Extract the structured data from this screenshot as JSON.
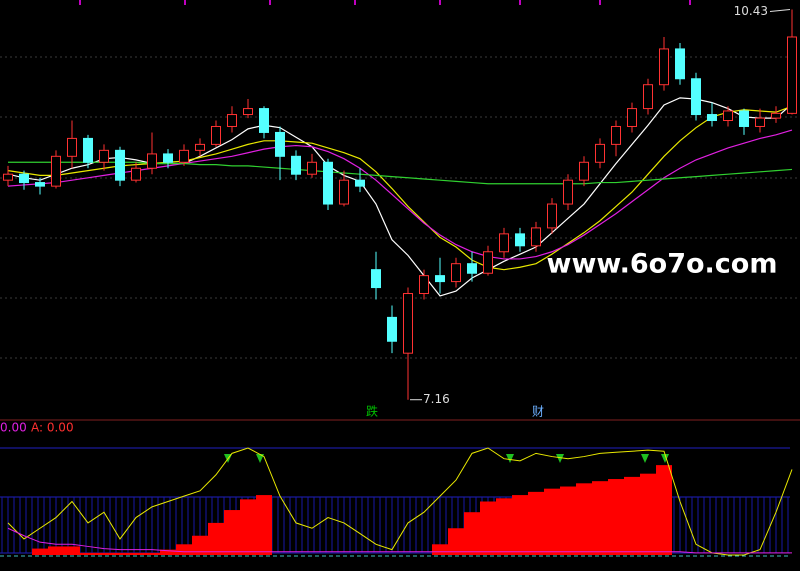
{
  "chart_data": {
    "type": "candlestick",
    "watermark": "www.6o7o.com",
    "ylim": [
      6.99,
      10.51
    ],
    "up_color": "#ff3232",
    "down_color": "#54ffff",
    "candles": {
      "open": [
        9.0,
        9.05,
        8.98,
        8.95,
        9.2,
        9.35,
        9.15,
        9.25,
        9.0,
        9.1,
        9.22,
        9.15,
        9.25,
        9.3,
        9.45,
        9.55,
        9.6,
        9.4,
        9.2,
        9.05,
        9.15,
        8.8,
        9.0,
        8.25,
        7.85,
        7.55,
        8.05,
        8.2,
        8.15,
        8.3,
        8.22,
        8.4,
        8.55,
        8.45,
        8.6,
        8.8,
        9.0,
        9.15,
        9.3,
        9.45,
        9.6,
        9.8,
        10.1,
        9.85,
        9.55,
        9.5,
        9.58,
        9.45,
        9.52,
        9.56
      ],
      "high": [
        9.12,
        9.08,
        9.02,
        9.25,
        9.5,
        9.38,
        9.3,
        9.28,
        9.15,
        9.4,
        9.26,
        9.3,
        9.35,
        9.5,
        9.62,
        9.68,
        9.62,
        9.45,
        9.25,
        9.22,
        9.18,
        9.08,
        9.1,
        8.4,
        7.95,
        8.1,
        8.25,
        8.35,
        8.35,
        8.4,
        8.45,
        8.6,
        8.6,
        8.65,
        8.85,
        9.05,
        9.2,
        9.35,
        9.5,
        9.65,
        9.85,
        10.2,
        10.15,
        9.9,
        9.65,
        9.62,
        9.6,
        9.6,
        9.62,
        10.43
      ],
      "low": [
        8.95,
        8.92,
        8.88,
        8.93,
        9.1,
        9.1,
        9.08,
        8.95,
        8.98,
        9.05,
        9.1,
        9.12,
        9.2,
        9.28,
        9.4,
        9.52,
        9.35,
        9.0,
        9.0,
        9.02,
        8.75,
        8.78,
        8.9,
        8.0,
        7.55,
        7.16,
        8.0,
        8.05,
        8.1,
        8.15,
        8.2,
        8.35,
        8.4,
        8.4,
        8.55,
        8.75,
        8.95,
        9.1,
        9.2,
        9.4,
        9.55,
        9.75,
        9.8,
        9.5,
        9.45,
        9.45,
        9.38,
        9.4,
        9.48,
        9.55
      ],
      "close": [
        9.05,
        8.98,
        8.95,
        9.2,
        9.35,
        9.15,
        9.25,
        9.0,
        9.1,
        9.22,
        9.15,
        9.25,
        9.3,
        9.45,
        9.55,
        9.6,
        9.4,
        9.2,
        9.05,
        9.15,
        8.8,
        9.0,
        8.95,
        8.1,
        7.65,
        8.05,
        8.2,
        8.15,
        8.3,
        8.22,
        8.4,
        8.55,
        8.45,
        8.6,
        8.8,
        9.0,
        9.15,
        9.3,
        9.45,
        9.6,
        9.8,
        10.1,
        9.85,
        9.55,
        9.5,
        9.58,
        9.45,
        9.52,
        9.56,
        10.2
      ]
    },
    "moving_averages": [
      {
        "color": "#ffffff",
        "values": [
          9.05,
          9.02,
          9.0,
          9.05,
          9.1,
          9.13,
          9.18,
          9.19,
          9.17,
          9.14,
          9.14,
          9.14,
          9.2,
          9.27,
          9.34,
          9.43,
          9.46,
          9.44,
          9.36,
          9.28,
          9.12,
          9.04,
          8.99,
          8.8,
          8.5,
          8.37,
          8.2,
          8.03,
          8.07,
          8.18,
          8.25,
          8.32,
          8.38,
          8.44,
          8.56,
          8.68,
          8.8,
          8.97,
          9.14,
          9.3,
          9.46,
          9.63,
          9.69,
          9.68,
          9.65,
          9.6,
          9.53,
          9.52,
          9.52,
          9.64
        ]
      },
      {
        "color": "#e8e800",
        "values": [
          9.08,
          9.06,
          9.04,
          9.04,
          9.06,
          9.08,
          9.1,
          9.12,
          9.13,
          9.14,
          9.15,
          9.16,
          9.19,
          9.22,
          9.26,
          9.3,
          9.33,
          9.33,
          9.32,
          9.31,
          9.27,
          9.23,
          9.18,
          9.07,
          8.93,
          8.78,
          8.65,
          8.52,
          8.44,
          8.33,
          8.27,
          8.25,
          8.27,
          8.3,
          8.38,
          8.47,
          8.56,
          8.66,
          8.78,
          8.9,
          9.05,
          9.2,
          9.33,
          9.44,
          9.53,
          9.57,
          9.59,
          9.58,
          9.57,
          9.62
        ]
      },
      {
        "color": "#e020e0",
        "values": [
          8.95,
          8.96,
          8.97,
          8.98,
          9.0,
          9.02,
          9.04,
          9.06,
          9.08,
          9.1,
          9.12,
          9.14,
          9.16,
          9.18,
          9.2,
          9.23,
          9.26,
          9.28,
          9.29,
          9.28,
          9.24,
          9.18,
          9.1,
          9.0,
          8.88,
          8.76,
          8.64,
          8.54,
          8.46,
          8.4,
          8.36,
          8.34,
          8.34,
          8.36,
          8.4,
          8.46,
          8.54,
          8.63,
          8.72,
          8.82,
          8.92,
          9.02,
          9.1,
          9.17,
          9.22,
          9.27,
          9.31,
          9.35,
          9.38,
          9.42
        ]
      },
      {
        "color": "#30d030",
        "values": [
          9.15,
          9.15,
          9.15,
          9.15,
          9.15,
          9.15,
          9.15,
          9.15,
          9.15,
          9.14,
          9.14,
          9.14,
          9.13,
          9.13,
          9.12,
          9.12,
          9.11,
          9.1,
          9.09,
          9.08,
          9.07,
          9.06,
          9.05,
          9.04,
          9.03,
          9.02,
          9.01,
          9.0,
          8.99,
          8.98,
          8.97,
          8.97,
          8.97,
          8.97,
          8.97,
          8.97,
          8.97,
          8.98,
          8.98,
          8.99,
          9.0,
          9.01,
          9.02,
          9.03,
          9.04,
          9.05,
          9.06,
          9.07,
          9.08,
          9.09
        ]
      }
    ],
    "high_label": "10.43",
    "low_label": "7.16",
    "signals": [
      "跌",
      "财"
    ],
    "indicator": {
      "ylim": [
        0,
        100
      ],
      "header": [
        "0.00",
        "A: 0.00"
      ],
      "series": [
        {
          "color": "#e8e800",
          "values": [
            30,
            15,
            25,
            35,
            50,
            30,
            40,
            15,
            35,
            45,
            50,
            55,
            60,
            75,
            95,
            100,
            92,
            55,
            30,
            25,
            35,
            30,
            20,
            10,
            5,
            30,
            40,
            55,
            70,
            95,
            100,
            90,
            88,
            95,
            92,
            90,
            92,
            95,
            96,
            97,
            98,
            97,
            50,
            10,
            2,
            0,
            0,
            5,
            40,
            80
          ]
        },
        {
          "color": "#e020e0",
          "values": [
            25,
            18,
            12,
            10,
            10,
            8,
            6,
            5,
            5,
            5,
            4,
            3,
            3,
            3,
            3,
            3,
            3,
            3,
            3,
            3,
            3,
            3,
            3,
            3,
            3,
            3,
            3,
            3,
            3,
            3,
            3,
            3,
            3,
            3,
            3,
            3,
            3,
            3,
            3,
            3,
            3,
            3,
            3,
            2,
            2,
            2,
            2,
            2,
            2,
            2
          ]
        }
      ],
      "bars": {
        "color": "#ff0000",
        "values": [
          0,
          0,
          6,
          8,
          8,
          2,
          2,
          2,
          2,
          2,
          5,
          10,
          18,
          30,
          42,
          52,
          56,
          0,
          0,
          0,
          0,
          0,
          0,
          0,
          0,
          0,
          0,
          10,
          25,
          40,
          50,
          53,
          56,
          59,
          62,
          64,
          67,
          69,
          71,
          73,
          76,
          84,
          0,
          0,
          0,
          0,
          0,
          0,
          0,
          0
        ]
      }
    }
  }
}
